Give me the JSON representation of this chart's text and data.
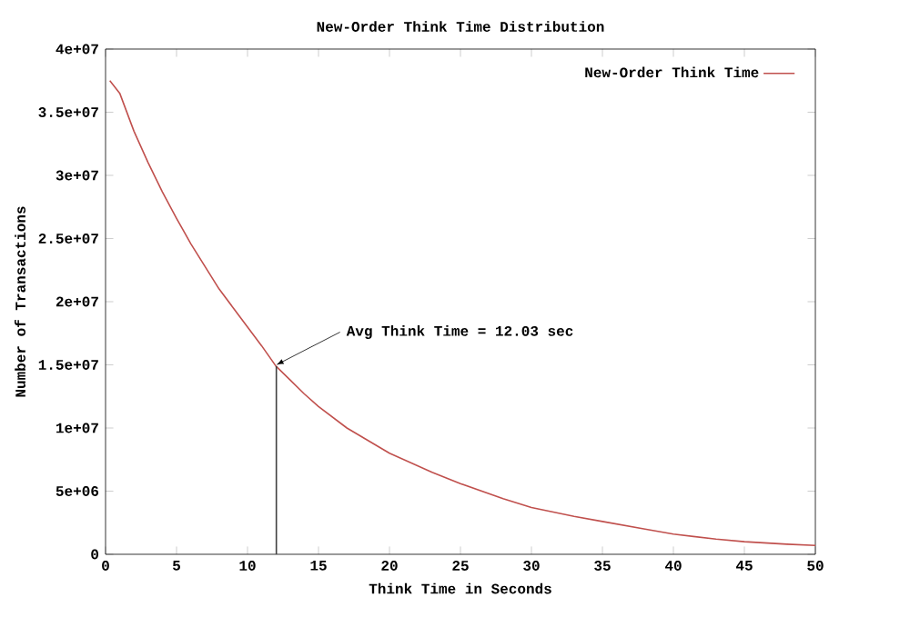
{
  "chart_data": {
    "type": "line",
    "title": "New-Order Think Time Distribution",
    "xlabel": "Think Time in Seconds",
    "ylabel": "Number of Transactions",
    "xlim": [
      0,
      50
    ],
    "xticks": [
      0,
      5,
      10,
      15,
      20,
      25,
      30,
      35,
      40,
      45,
      50
    ],
    "ylim": [
      0,
      40000000
    ],
    "yticks": [
      {
        "value": 0,
        "label": "0"
      },
      {
        "value": 5000000,
        "label": "5e+06"
      },
      {
        "value": 10000000,
        "label": "1e+07"
      },
      {
        "value": 15000000,
        "label": "1.5e+07"
      },
      {
        "value": 20000000,
        "label": "2e+07"
      },
      {
        "value": 25000000,
        "label": "2.5e+07"
      },
      {
        "value": 30000000,
        "label": "3e+07"
      },
      {
        "value": 35000000,
        "label": "3.5e+07"
      },
      {
        "value": 40000000,
        "label": "4e+07"
      }
    ],
    "legend": "top right",
    "grid": false,
    "marker": "none",
    "annotations": [
      {
        "text": "Avg Think Time = 12.03 sec",
        "x": 12.03,
        "y": 15000000
      }
    ],
    "series": [
      {
        "name": "New-Order Think Time",
        "color": "#c0504d",
        "x": [
          0.3,
          1,
          2,
          3,
          4,
          5,
          6,
          7,
          8,
          9,
          10,
          11,
          12,
          13,
          14,
          15,
          17,
          20,
          23,
          25,
          28,
          30,
          33,
          35,
          38,
          40,
          43,
          45,
          48,
          50
        ],
        "values": [
          37500000,
          36500000,
          33500000,
          31000000,
          28700000,
          26600000,
          24600000,
          22800000,
          21000000,
          19500000,
          18000000,
          16500000,
          14900000,
          13800000,
          12700000,
          11700000,
          10000000,
          8000000,
          6500000,
          5600000,
          4400000,
          3700000,
          3000000,
          2600000,
          2000000,
          1600000,
          1200000,
          1000000,
          800000,
          700000
        ]
      },
      {
        "type": "line",
        "color": "#404040",
        "x": [
          12.03,
          12.03
        ],
        "values": [
          0,
          14900000
        ]
      }
    ]
  }
}
